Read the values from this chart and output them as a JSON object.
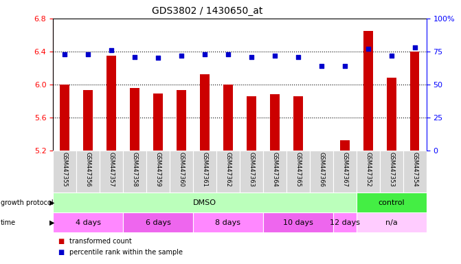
{
  "title": "GDS3802 / 1430650_at",
  "samples": [
    "GSM447355",
    "GSM447356",
    "GSM447357",
    "GSM447358",
    "GSM447359",
    "GSM447360",
    "GSM447361",
    "GSM447362",
    "GSM447363",
    "GSM447364",
    "GSM447365",
    "GSM447366",
    "GSM447367",
    "GSM447352",
    "GSM447353",
    "GSM447354"
  ],
  "transformed_counts": [
    6.0,
    5.93,
    6.35,
    5.96,
    5.89,
    5.93,
    6.12,
    6.0,
    5.86,
    5.88,
    5.86,
    5.19,
    5.32,
    6.65,
    6.08,
    6.4
  ],
  "percentile_ranks": [
    73,
    73,
    76,
    71,
    70,
    72,
    73,
    73,
    71,
    72,
    71,
    64,
    64,
    77,
    72,
    78
  ],
  "ylim_left": [
    5.2,
    6.8
  ],
  "ylim_right": [
    0,
    100
  ],
  "yticks_left": [
    5.2,
    5.6,
    6.0,
    6.4,
    6.8
  ],
  "yticks_right": [
    0,
    25,
    50,
    75,
    100
  ],
  "bar_color": "#cc0000",
  "dot_color": "#0000cc",
  "bar_bottom": 5.2,
  "growth_protocol_groups": [
    {
      "label": "DMSO",
      "start": 0,
      "end": 12,
      "color": "#bbffbb"
    },
    {
      "label": "control",
      "start": 13,
      "end": 15,
      "color": "#44ee44"
    }
  ],
  "time_groups": [
    {
      "label": "4 days",
      "start": 0,
      "end": 2,
      "color": "#ff88ff"
    },
    {
      "label": "6 days",
      "start": 3,
      "end": 5,
      "color": "#ee66ee"
    },
    {
      "label": "8 days",
      "start": 6,
      "end": 8,
      "color": "#ff88ff"
    },
    {
      "label": "10 days",
      "start": 9,
      "end": 11,
      "color": "#ee66ee"
    },
    {
      "label": "12 days",
      "start": 12,
      "end": 12,
      "color": "#ff88ff"
    },
    {
      "label": "n/a",
      "start": 13,
      "end": 15,
      "color": "#ffccff"
    }
  ],
  "legend_items": [
    {
      "label": "transformed count",
      "color": "#cc0000"
    },
    {
      "label": "percentile rank within the sample",
      "color": "#0000cc"
    }
  ],
  "dotted_lines": [
    5.6,
    6.0,
    6.4
  ],
  "title_fontsize": 10,
  "bar_width": 0.4,
  "dot_size": 15
}
